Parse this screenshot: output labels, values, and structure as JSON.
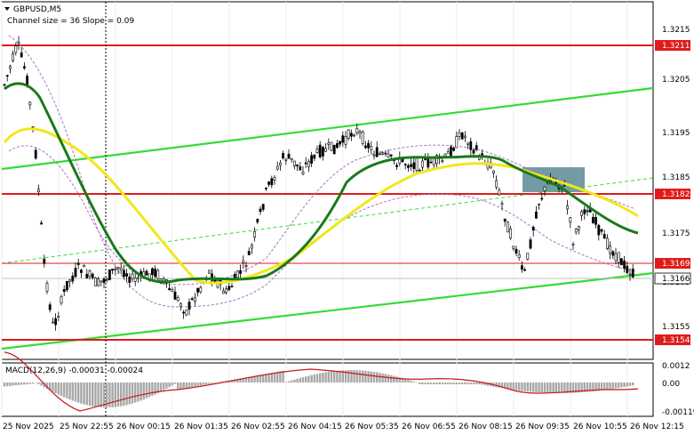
{
  "header": {
    "symbol": "GBPUSD,M5",
    "indicator_text": "Channel size = 36 Slope = 0.09",
    "collapse_icon": "triangle-down-icon"
  },
  "price_axis": {
    "ticks": [
      "1.3215",
      "1.3205",
      "1.3195",
      "1.3185",
      "1.3175",
      "1.3165",
      "1.3155"
    ],
    "levels": [
      {
        "label": "1.3211",
        "color": "#e01b1b",
        "kind": "resistance"
      },
      {
        "label": "1.3182",
        "color": "#e01b1b",
        "kind": "resistance"
      },
      {
        "label": "1.3169",
        "color": "#e01b1b",
        "kind": "level"
      },
      {
        "label": "1.3154",
        "color": "#e01b1b",
        "kind": "support"
      }
    ],
    "current_price": "1.3166"
  },
  "macd": {
    "label": "MACD(12,26,9) -0.00031 -0.00024",
    "ticks": [
      "0.0012",
      "0.00",
      "-0.00119"
    ]
  },
  "time_axis": {
    "labels": [
      "25 Nov 2025",
      "25 Nov 22:55",
      "26 Nov 00:15",
      "26 Nov 01:35",
      "26 Nov 02:55",
      "26 Nov 04:15",
      "26 Nov 05:35",
      "26 Nov 06:55",
      "26 Nov 08:15",
      "26 Nov 09:35",
      "26 Nov 10:55",
      "26 Nov 12:15"
    ]
  },
  "colors": {
    "candle": "#000000",
    "ma_fast": "#1a7a1a",
    "ma_slow": "#f0e81a",
    "channel": "#33dd33",
    "level_line": "#e01b1b",
    "band": "#b070c0",
    "highlight_box": "#5a8a96",
    "macd_hist": "#a8a8a8",
    "macd_signal": "#c81818"
  }
}
